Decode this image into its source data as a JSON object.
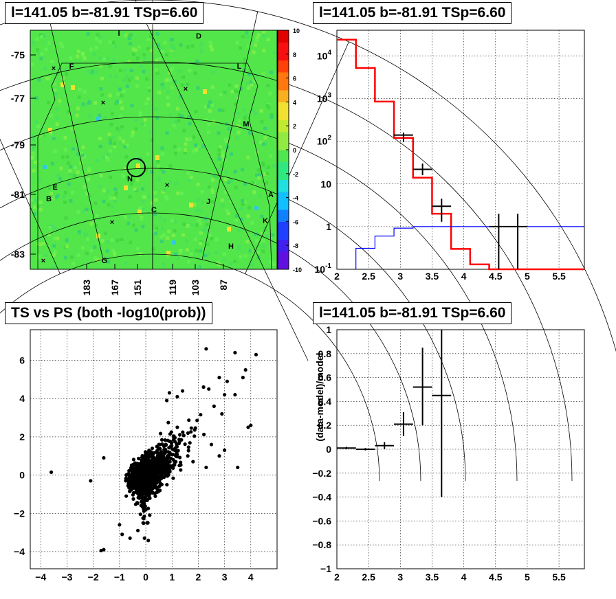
{
  "chart_data": [
    {
      "type": "heatmap",
      "title": "l=141.05 b=-81.91 TSp=6.60",
      "ytick_labels": [
        "-75",
        "-77",
        "-79",
        "-81",
        "-83"
      ],
      "xtick_labels": [
        "183",
        "167",
        "151",
        "119",
        "103",
        "87"
      ],
      "zrange": [
        -10,
        10
      ],
      "zticks": [
        "10",
        "8",
        "6",
        "4",
        "2",
        "0",
        "-2",
        "-4",
        "-6",
        "-8",
        "-10"
      ],
      "source_labels": [
        "I",
        "D",
        "F",
        "L",
        "M",
        "N",
        "E",
        "B",
        "C",
        "J",
        "A",
        "K",
        "H",
        "G"
      ],
      "colors": {
        "background": "#52e64a",
        "highlight": "#f0e030",
        "low": "#30c8e8"
      }
    },
    {
      "type": "line",
      "title": "l=141.05 b=-81.91 TSp=6.60",
      "log_y": true,
      "xlim": [
        2,
        5.9
      ],
      "ylim": [
        0.1,
        40000
      ],
      "xticks": [
        "2",
        "2.5",
        "3",
        "3.5",
        "4",
        "4.5",
        "5",
        "5.5"
      ],
      "yticks": [
        {
          "v": 0.1,
          "base": "10",
          "exp": "-1"
        },
        {
          "v": 1,
          "text": "1"
        },
        {
          "v": 10,
          "text": "10"
        },
        {
          "v": 100,
          "base": "10",
          "exp": "2"
        },
        {
          "v": 1000,
          "base": "10",
          "exp": "3"
        },
        {
          "v": 10000,
          "base": "10",
          "exp": "4"
        }
      ],
      "series": [
        {
          "style": "step",
          "color": "#ff0000",
          "edges": [
            2,
            2.3,
            2.6,
            2.9,
            3.2,
            3.5,
            3.8,
            4.1,
            4.4,
            4.7,
            5.9
          ],
          "values": [
            24000,
            5200,
            850,
            120,
            14,
            2,
            0.3,
            0.13,
            0.1,
            0.1
          ]
        },
        {
          "style": "step",
          "color": "#0000ff",
          "edges": [
            2.3,
            2.6,
            2.9,
            3.2,
            3.5,
            3.8,
            4.1,
            4.4,
            4.7,
            5.9
          ],
          "values": [
            0.31,
            0.6,
            0.92,
            1,
            1,
            1,
            1,
            1,
            1
          ]
        },
        {
          "style": "errorbar",
          "color": "#000000",
          "x": [
            3.05,
            3.35,
            3.65,
            4.55,
            4.85
          ],
          "y": [
            140,
            22,
            3,
            1,
            1
          ],
          "xerr": [
            0.15,
            0.15,
            0.15,
            0.15,
            0.15
          ],
          "ylo": [
            95,
            16,
            1.3,
            0.1,
            0.1
          ],
          "yhi": [
            160,
            30,
            4.5,
            2,
            2
          ]
        }
      ]
    },
    {
      "type": "scatter",
      "title": "TS vs PS (both -log10(prob))",
      "xlim": [
        -4.4,
        5
      ],
      "ylim": [
        -4.9,
        7.6
      ],
      "xticks": [
        -4,
        -3,
        -2,
        -1,
        0,
        1,
        2,
        3,
        4
      ],
      "yticks": [
        -4,
        -2,
        0,
        2,
        4,
        6
      ],
      "diagonal": true,
      "outliers": [
        [
          -3.6,
          0.15
        ],
        [
          -2.1,
          -0.3
        ],
        [
          -1.6,
          0.9
        ],
        [
          -1.0,
          -2.6
        ],
        [
          -0.9,
          -3.1
        ],
        [
          -1.6,
          -3.9
        ],
        [
          -1.7,
          -3.95
        ],
        [
          -0.6,
          -3.3
        ],
        [
          -0.3,
          -2.9
        ],
        [
          -0.05,
          -3.3
        ],
        [
          -0.1,
          -2.5
        ],
        [
          0.8,
          3.9
        ],
        [
          0.9,
          4.3
        ],
        [
          1.2,
          4.1
        ],
        [
          1.4,
          4.4
        ],
        [
          2.3,
          6.6
        ],
        [
          2.2,
          4.6
        ],
        [
          2.4,
          4.5
        ],
        [
          2.6,
          3.6
        ],
        [
          2.8,
          5.1
        ],
        [
          2.9,
          3.2
        ],
        [
          3.1,
          4.9
        ],
        [
          3.4,
          6.4
        ],
        [
          3.7,
          5.1
        ],
        [
          3.8,
          5.5
        ],
        [
          4.2,
          6.3
        ],
        [
          4.0,
          2.6
        ],
        [
          3.9,
          2.5
        ],
        [
          3.5,
          0.4
        ],
        [
          3.0,
          1.3
        ],
        [
          2.8,
          1.0
        ],
        [
          1.2,
          2.5
        ],
        [
          1.6,
          1.0
        ],
        [
          1.8,
          0.7
        ],
        [
          2.3,
          0.4
        ],
        [
          3.4,
          4.2
        ],
        [
          3.0,
          4.2
        ],
        [
          2.5,
          1.6
        ],
        [
          0.5,
          1.6
        ],
        [
          1.1,
          1.3
        ]
      ]
    },
    {
      "type": "line",
      "title": "l=141.05 b=-81.91 TSp=6.60",
      "ylabel": "(data-model)/model",
      "xlim": [
        2,
        5.9
      ],
      "ylim": [
        -1,
        1
      ],
      "xticks": [
        "2",
        "2.5",
        "3",
        "3.5",
        "4",
        "4.5",
        "5",
        "5.5"
      ],
      "yticks": [
        "-1",
        "-0.8",
        "-0.6",
        "-0.4",
        "-0.2",
        "0",
        "0.2",
        "0.4",
        "0.6",
        "0.8",
        "1"
      ],
      "series": [
        {
          "style": "errorbar",
          "color": "#000000",
          "x": [
            2.15,
            2.45,
            2.75,
            3.05,
            3.35,
            3.65
          ],
          "y": [
            0.01,
            0.0,
            0.03,
            0.21,
            0.52,
            0.45
          ],
          "xerr": [
            0.15,
            0.15,
            0.15,
            0.15,
            0.15,
            0.15
          ],
          "ylo": [
            0.0,
            -0.01,
            0.0,
            0.11,
            0.2,
            -0.4
          ],
          "yhi": [
            0.02,
            0.01,
            0.06,
            0.31,
            0.85,
            1.0
          ]
        }
      ]
    }
  ]
}
